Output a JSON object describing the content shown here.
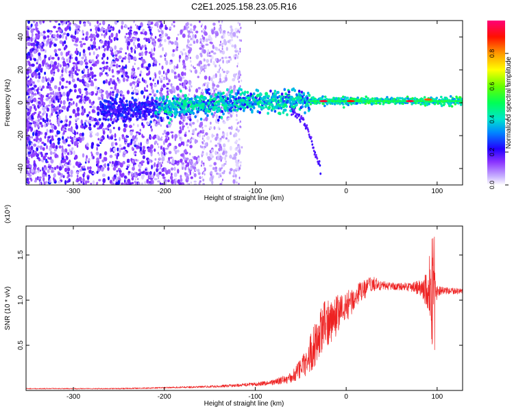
{
  "title": "C2E1.2025.158.23.05.R16",
  "chart_data": [
    {
      "type": "heatmap",
      "xlabel": "Height of straight line (km)",
      "ylabel": "Frequency (Hz)",
      "xlim": [
        -352,
        128
      ],
      "ylim": [
        -50,
        50
      ],
      "x_ticks": [
        -300,
        -200,
        -100,
        0,
        100
      ],
      "y_ticks": [
        -40,
        -20,
        0,
        20,
        40
      ],
      "x_tick_labels": [
        "-300",
        "-200",
        "-100",
        "0",
        "100"
      ],
      "y_tick_labels": [
        "-40",
        "-20",
        "0",
        "20",
        "40"
      ],
      "colorbar": {
        "label": "Normalized spectral amplitude",
        "range": [
          0,
          1
        ],
        "ticks": [
          0.0,
          0.2,
          0.4,
          0.6,
          0.8
        ],
        "tick_labels": [
          "0.0",
          "0.2",
          "0.4",
          "0.6",
          "0.8"
        ],
        "colormap": [
          "#ffffff",
          "#9966ff",
          "#3300ff",
          "#0000ff",
          "#00ccff",
          "#00ff66",
          "#66ff00",
          "#ffff00",
          "#ff9900",
          "#ff0000",
          "#ff0066"
        ]
      },
      "ridge": [
        {
          "x": -265,
          "f": -4
        },
        {
          "x": -240,
          "f": -4
        },
        {
          "x": -210,
          "f": -3
        },
        {
          "x": -185,
          "f": -2
        },
        {
          "x": -160,
          "f": -1
        },
        {
          "x": -130,
          "f": 0
        },
        {
          "x": -100,
          "f": 1
        },
        {
          "x": -75,
          "f": 1
        },
        {
          "x": -50,
          "f": 1
        },
        {
          "x": -20,
          "f": 1
        },
        {
          "x": 0,
          "f": 1
        },
        {
          "x": 50,
          "f": 1
        },
        {
          "x": 100,
          "f": 1
        },
        {
          "x": 128,
          "f": 1
        }
      ],
      "branch": [
        {
          "x": -60,
          "f": -5
        },
        {
          "x": -48,
          "f": -10
        },
        {
          "x": -42,
          "f": -17
        },
        {
          "x": -35,
          "f": -28
        },
        {
          "x": -28,
          "f": -42
        }
      ],
      "hotspots": [
        {
          "x": -25,
          "f": 1,
          "a": 0.95
        },
        {
          "x": 5,
          "f": 1,
          "a": 0.9
        },
        {
          "x": 70,
          "f": 1,
          "a": 0.95
        },
        {
          "x": 90,
          "f": 2,
          "a": 0.85
        }
      ]
    },
    {
      "type": "line",
      "xlabel": "Height of straight line (km)",
      "ylabel": "SNR (10 * v/v)",
      "scale_label": "(x10⁴)",
      "xlim": [
        -352,
        128
      ],
      "ylim": [
        0,
        1.82
      ],
      "x_ticks": [
        -300,
        -200,
        -100,
        0,
        100
      ],
      "y_ticks": [
        0.5,
        1.0,
        1.5
      ],
      "x_tick_labels": [
        "-300",
        "-200",
        "-100",
        "0",
        "100"
      ],
      "y_tick_labels": [
        "0.5",
        "1.0",
        "1.5"
      ],
      "color": "#ee2222",
      "series": [
        {
          "x": [
            -352,
            -300,
            -250,
            -200,
            -160,
            -130,
            -100,
            -80,
            -60,
            -45,
            -35,
            -25,
            -15,
            -5,
            5,
            15,
            25,
            30,
            40,
            60,
            75,
            85,
            90,
            93,
            95,
            97,
            100,
            110,
            128
          ],
          "values": [
            0.02,
            0.02,
            0.02,
            0.03,
            0.04,
            0.05,
            0.07,
            0.09,
            0.14,
            0.3,
            0.5,
            0.7,
            0.8,
            0.88,
            0.98,
            1.08,
            1.15,
            1.18,
            1.16,
            1.15,
            1.15,
            1.12,
            1.1,
            1.05,
            1.2,
            1.1,
            1.1,
            1.1,
            1.1
          ],
          "amplitude": [
            0.005,
            0.005,
            0.006,
            0.008,
            0.01,
            0.015,
            0.02,
            0.03,
            0.06,
            0.15,
            0.25,
            0.28,
            0.25,
            0.2,
            0.15,
            0.12,
            0.1,
            0.08,
            0.05,
            0.04,
            0.06,
            0.12,
            0.3,
            0.6,
            0.6,
            0.3,
            0.06,
            0.04,
            0.03
          ]
        }
      ]
    }
  ]
}
